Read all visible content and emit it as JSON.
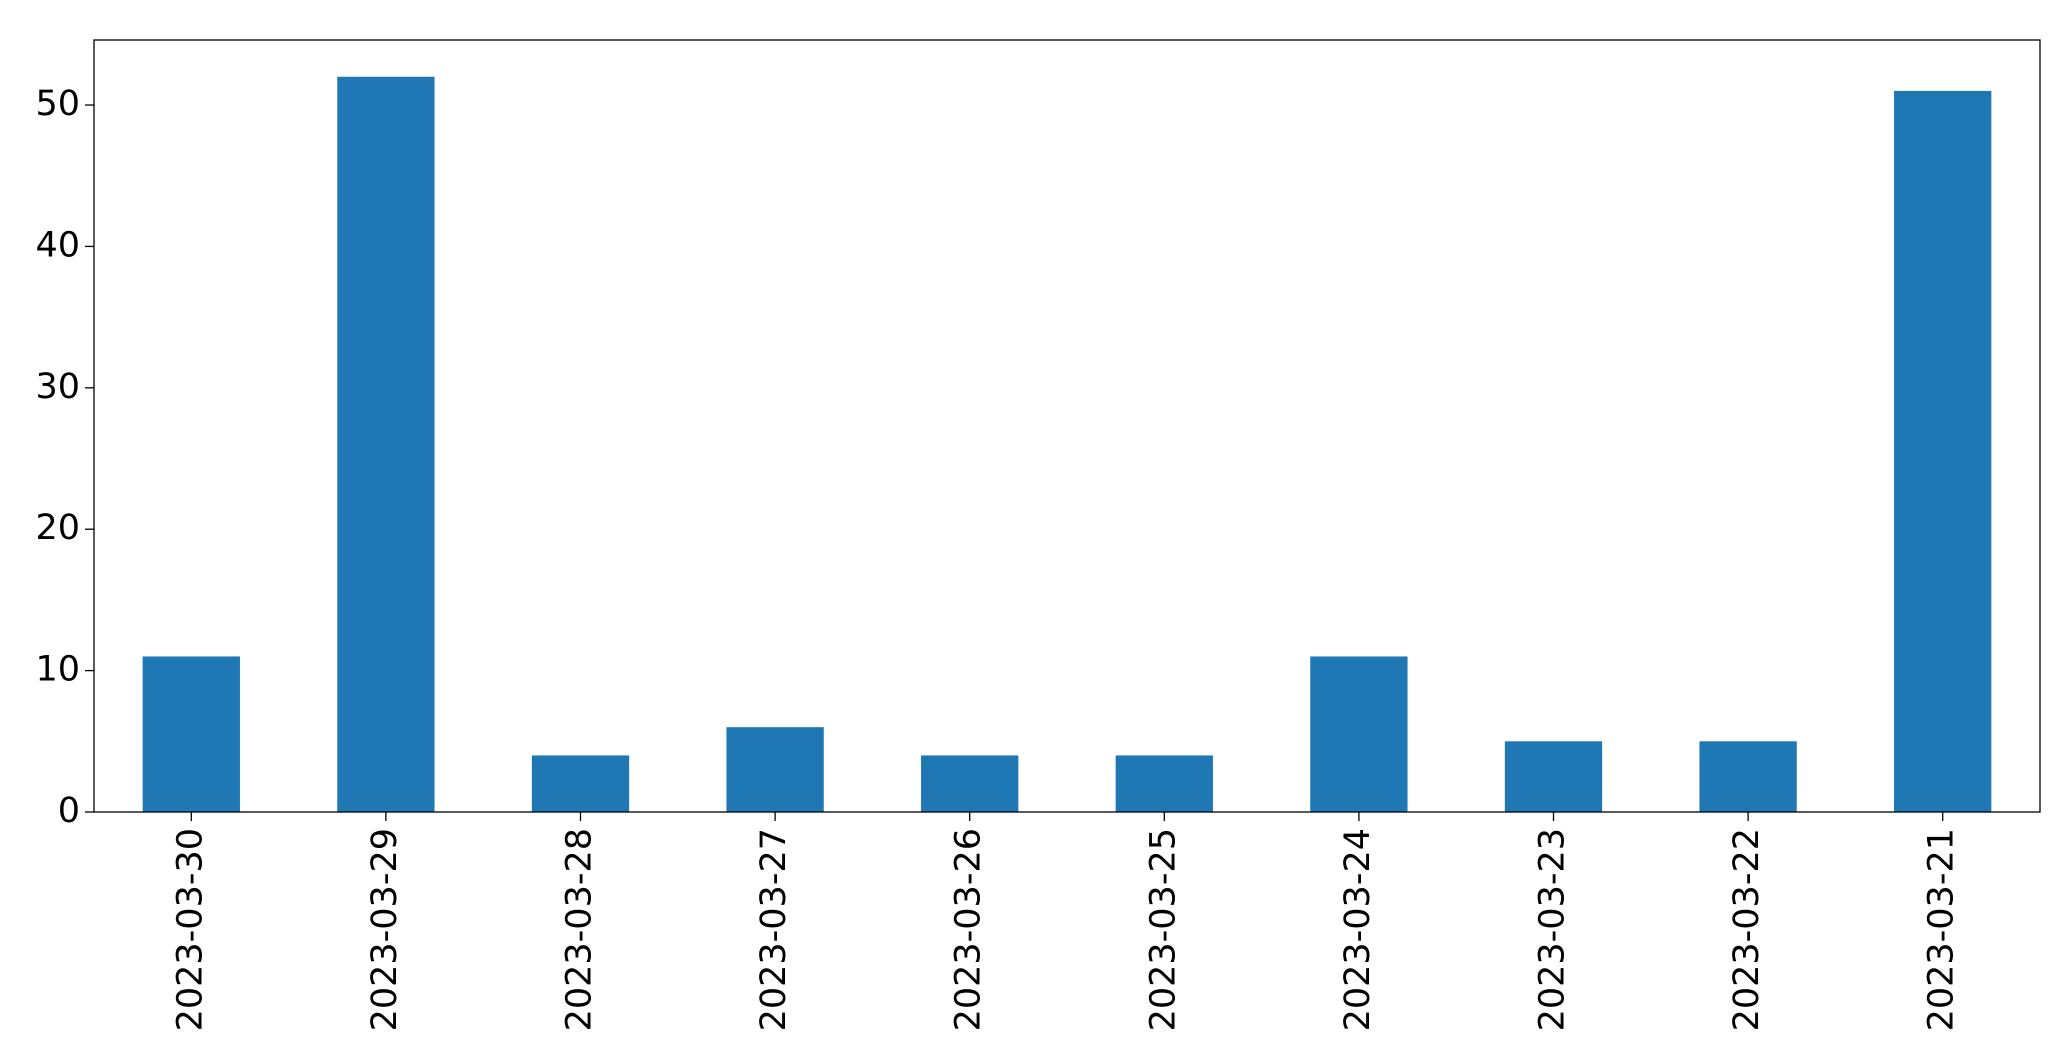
{
  "chart_data": {
    "type": "bar",
    "categories": [
      "2023-03-30",
      "2023-03-29",
      "2023-03-28",
      "2023-03-27",
      "2023-03-26",
      "2023-03-25",
      "2023-03-24",
      "2023-03-23",
      "2023-03-22",
      "2023-03-21"
    ],
    "values": [
      11,
      52,
      4,
      6,
      4,
      4,
      11,
      5,
      5,
      51
    ],
    "color": "#1f77b4",
    "ylim": [
      0,
      54.6
    ],
    "yticks": [
      0,
      10,
      20,
      30,
      40,
      50
    ],
    "grid": false
  }
}
